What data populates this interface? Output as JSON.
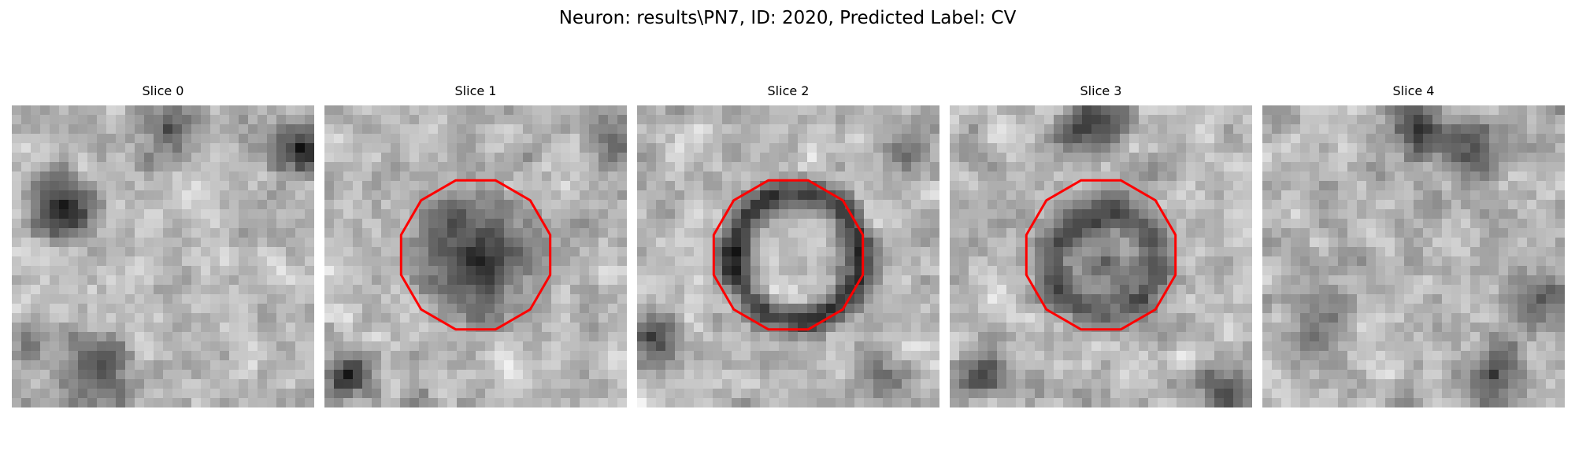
{
  "figure": {
    "title": "Neuron: results\\PN7, ID: 2020, Predicted Label: CV"
  },
  "panels": [
    {
      "title": "Slice 0",
      "pattern": "slice-0",
      "seed": 11,
      "contour": false
    },
    {
      "title": "Slice 1",
      "pattern": "slice-1",
      "seed": 23,
      "contour": true
    },
    {
      "title": "Slice 2",
      "pattern": "slice-2",
      "seed": 37,
      "contour": true
    },
    {
      "title": "Slice 3",
      "pattern": "slice-3",
      "seed": 41,
      "contour": true
    },
    {
      "title": "Slice 4",
      "pattern": "slice-4",
      "seed": 59,
      "contour": false
    }
  ],
  "style": {
    "colormap": "gray",
    "contour_color": "#ff0000",
    "grid": false,
    "axes_visible": false
  }
}
